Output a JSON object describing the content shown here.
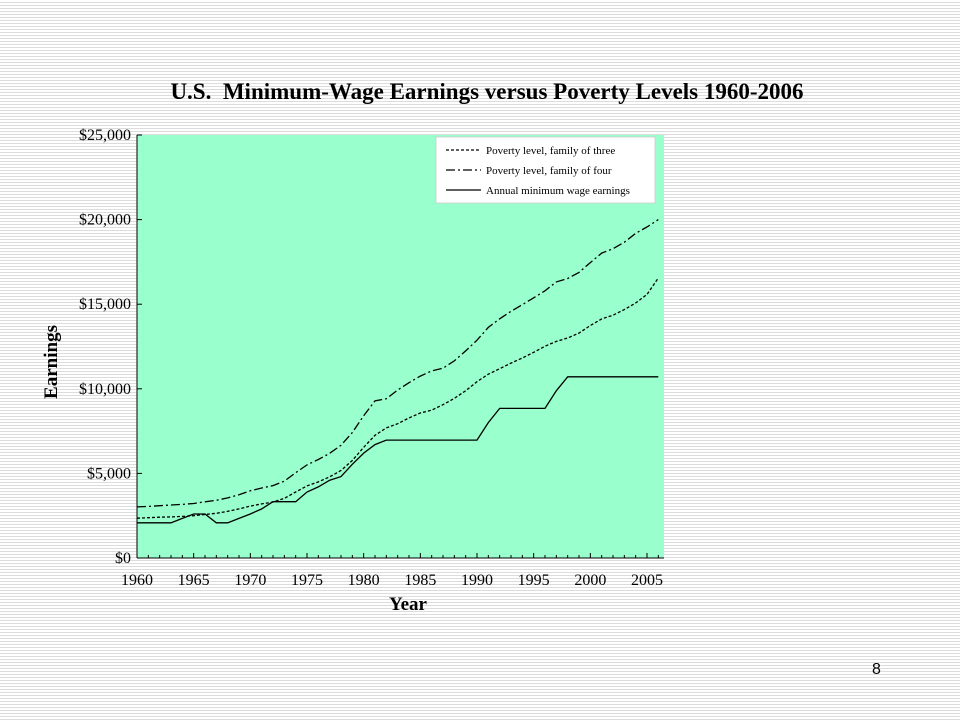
{
  "slide": {
    "page_number": "8"
  },
  "chart_data": {
    "type": "line",
    "title": "U.S.  Minimum-Wage Earnings versus Poverty Levels 1960-2006",
    "xlabel": "Year",
    "ylabel": "Earnings",
    "xlim": [
      1960,
      2006.5
    ],
    "ylim": [
      0,
      25000
    ],
    "x_ticks": [
      "1960",
      "1965",
      "1970",
      "1975",
      "1980",
      "1985",
      "1990",
      "1995",
      "2000",
      "2005"
    ],
    "y_ticks": [
      "$0",
      "$5,000",
      "$10,000",
      "$15,000",
      "$20,000",
      "$25,000"
    ],
    "plot_background": "#99ffcc",
    "grid": false,
    "legend_position": "top-right",
    "x": [
      1960,
      1961,
      1962,
      1963,
      1964,
      1965,
      1966,
      1967,
      1968,
      1969,
      1970,
      1971,
      1972,
      1973,
      1974,
      1975,
      1976,
      1977,
      1978,
      1979,
      1980,
      1981,
      1982,
      1983,
      1984,
      1985,
      1986,
      1987,
      1988,
      1989,
      1990,
      1991,
      1992,
      1993,
      1994,
      1995,
      1996,
      1997,
      1998,
      1999,
      2000,
      2001,
      2002,
      2003,
      2004,
      2005,
      2006
    ],
    "series": [
      {
        "name": "Poverty level, family of three",
        "style": "dotted",
        "values": [
          2350,
          2380,
          2410,
          2430,
          2460,
          2500,
          2570,
          2640,
          2760,
          2900,
          3070,
          3200,
          3310,
          3520,
          3900,
          4260,
          4500,
          4800,
          5170,
          5760,
          6540,
          7250,
          7690,
          7940,
          8280,
          8570,
          8740,
          9060,
          9430,
          9890,
          10420,
          10860,
          11190,
          11520,
          11820,
          12160,
          12520,
          12800,
          13000,
          13290,
          13740,
          14130,
          14350,
          14680,
          15070,
          15580,
          16550
        ]
      },
      {
        "name": "Poverty level, family of four",
        "style": "dash-dot",
        "values": [
          3020,
          3050,
          3090,
          3130,
          3170,
          3220,
          3320,
          3410,
          3550,
          3740,
          3970,
          4140,
          4280,
          4540,
          5040,
          5500,
          5820,
          6190,
          6660,
          7410,
          8410,
          9290,
          9410,
          9930,
          10360,
          10750,
          11060,
          11220,
          11650,
          12240,
          12870,
          13630,
          14140,
          14580,
          14970,
          15380,
          15790,
          16320,
          16520,
          16880,
          17460,
          18020,
          18280,
          18660,
          19190,
          19560,
          20000
        ]
      },
      {
        "name": "Annual minimum wage earnings",
        "style": "solid",
        "values": [
          2080,
          2080,
          2080,
          2080,
          2340,
          2600,
          2600,
          2080,
          2080,
          2340,
          2600,
          2900,
          3330,
          3330,
          3330,
          3900,
          4200,
          4600,
          4810,
          5540,
          6200,
          6700,
          6970,
          6970,
          6970,
          6970,
          6970,
          6970,
          6970,
          6970,
          6970,
          8000,
          8840,
          8840,
          8840,
          8840,
          8840,
          9880,
          10710,
          10710,
          10710,
          10710,
          10710,
          10710,
          10710,
          10710,
          10710
        ]
      }
    ]
  }
}
